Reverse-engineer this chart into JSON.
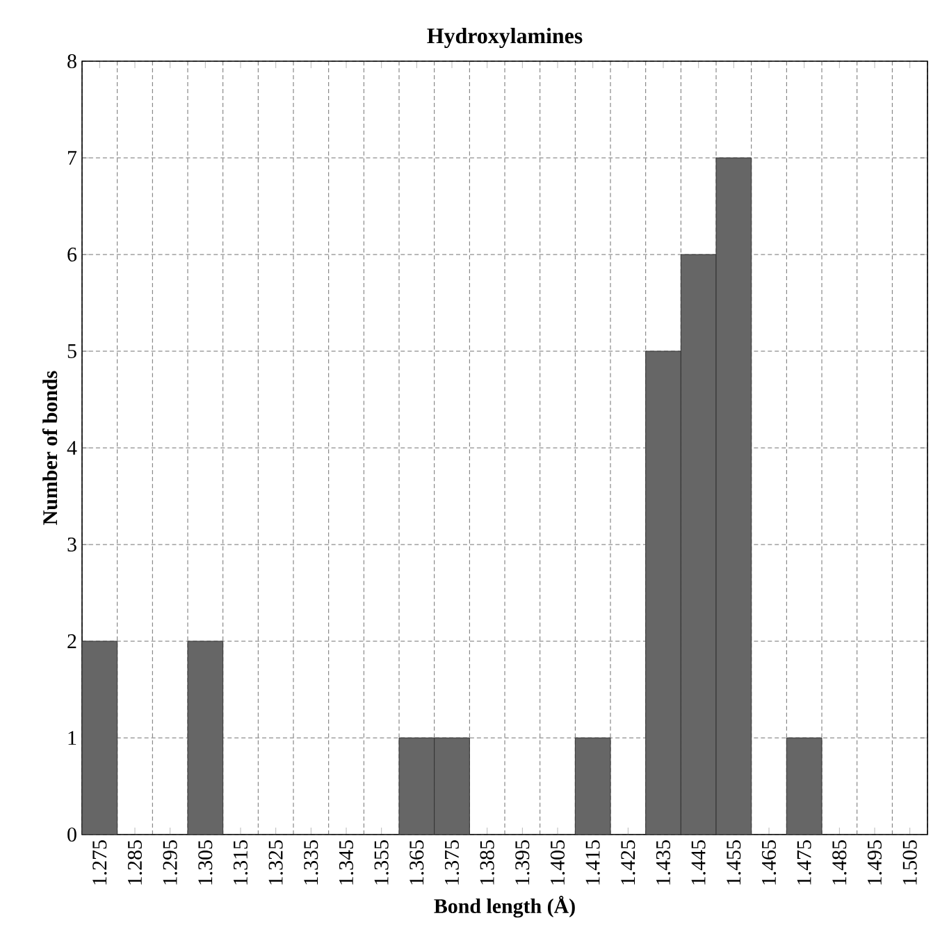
{
  "chart_data": {
    "type": "histogram",
    "title": "Hydroxylamines",
    "xlabel": "Bond length (Å)",
    "ylabel": "Number of bonds",
    "bins": [
      1.27,
      1.28,
      1.29,
      1.3,
      1.31,
      1.32,
      1.33,
      1.34,
      1.35,
      1.36,
      1.37,
      1.38,
      1.39,
      1.4,
      1.41,
      1.42,
      1.43,
      1.44,
      1.45,
      1.46,
      1.47,
      1.48,
      1.49,
      1.5,
      1.51
    ],
    "values": [
      2,
      0,
      0,
      2,
      0,
      0,
      0,
      0,
      0,
      1,
      1,
      0,
      0,
      0,
      1,
      0,
      5,
      6,
      7,
      0,
      1,
      0,
      0,
      0
    ],
    "color": "#666666",
    "xlim": [
      1.27,
      1.51
    ],
    "ylim": [
      0,
      8
    ],
    "xticks": [
      1.275,
      1.285,
      1.295,
      1.305,
      1.315,
      1.325,
      1.335,
      1.345,
      1.355,
      1.365,
      1.375,
      1.385,
      1.395,
      1.405,
      1.415,
      1.425,
      1.435,
      1.445,
      1.455,
      1.465,
      1.475,
      1.485,
      1.495,
      1.505
    ],
    "yticks": [
      0,
      1,
      2,
      3,
      4,
      5,
      6,
      7,
      8
    ],
    "grid": true
  }
}
